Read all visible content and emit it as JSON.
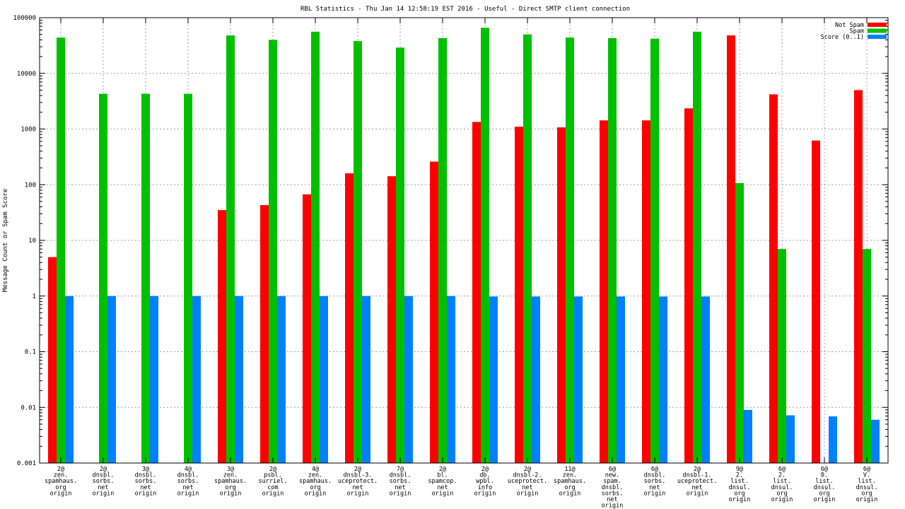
{
  "chart_data": {
    "type": "bar",
    "title": "RBL Statistics - Thu Jan 14 12:58:19 EST 2016 - Useful - Direct SMTP client connection",
    "xlabel": "",
    "ylabel": "Message Count or Spam Score",
    "yscale": "log",
    "ylim": [
      0.001,
      100000
    ],
    "yticks": [
      "0.001",
      "0.01",
      "0.1",
      "1",
      "10",
      "100",
      "1000",
      "10000",
      "100000"
    ],
    "grid": true,
    "legend_position": "top-right",
    "categories": [
      [
        "2@",
        "zen.",
        "spamhaus.",
        "org",
        "origin"
      ],
      [
        "2@",
        "dnsbl.",
        "sorbs.",
        "net",
        "origin"
      ],
      [
        "3@",
        "dnsbl.",
        "sorbs.",
        "net",
        "origin"
      ],
      [
        "4@",
        "dnsbl.",
        "sorbs.",
        "net",
        "origin"
      ],
      [
        "3@",
        "zen.",
        "spamhaus.",
        "org",
        "origin"
      ],
      [
        "2@",
        "psbl.",
        "surriel.",
        "com",
        "origin"
      ],
      [
        "4@",
        "zen.",
        "spamhaus.",
        "org",
        "origin"
      ],
      [
        "2@",
        "dnsbl-3.",
        "uceprotect.",
        "net",
        "origin"
      ],
      [
        "7@",
        "dnsbl.",
        "sorbs.",
        "net",
        "origin"
      ],
      [
        "2@",
        "bl.",
        "spamcop.",
        "net",
        "origin"
      ],
      [
        "2@",
        "db.",
        "wpbl.",
        "info",
        "origin"
      ],
      [
        "2@",
        "dnsbl-2.",
        "uceprotect.",
        "net",
        "origin"
      ],
      [
        "11@",
        "zen.",
        "spamhaus.",
        "org",
        "origin"
      ],
      [
        "6@",
        "new.",
        "spam.",
        "dnsbl.",
        "sorbs.",
        "net",
        "origin"
      ],
      [
        "6@",
        "dnsbl.",
        "sorbs.",
        "net",
        "origin"
      ],
      [
        "2@",
        "dnsbl-1.",
        "uceprotect.",
        "net",
        "origin"
      ],
      [
        "9@",
        "2.",
        "list.",
        "dnsul.",
        "org",
        "origin"
      ],
      [
        "6@",
        "2.",
        "list.",
        "dnsul.",
        "org",
        "origin"
      ],
      [
        "6@",
        "0.",
        "list.",
        "dnsul.",
        "org",
        "origin"
      ],
      [
        "6@",
        "V.",
        "list.",
        "dnsul.",
        "org",
        "origin"
      ]
    ],
    "series": [
      {
        "name": "Not Spam",
        "color": "#ff0000",
        "values": [
          5,
          0,
          0,
          0,
          35,
          43,
          67,
          160,
          142,
          260,
          1340,
          1100,
          1070,
          1430,
          1430,
          2350,
          48000,
          4200,
          620,
          5000
        ]
      },
      {
        "name": "Spam",
        "color": "#00c000",
        "values": [
          44000,
          4300,
          4300,
          4300,
          48000,
          40000,
          56000,
          38000,
          29000,
          43000,
          66000,
          50000,
          44000,
          43000,
          42000,
          56000,
          107,
          7,
          0,
          7
        ]
      },
      {
        "name": "Score (0..1)",
        "color": "#0080ff",
        "values": [
          1,
          1,
          1,
          1,
          1,
          1,
          1,
          1,
          1,
          1,
          0.98,
          0.98,
          0.98,
          0.98,
          0.98,
          0.98,
          0.009,
          0.0072,
          0.0069,
          0.006
        ]
      }
    ]
  }
}
